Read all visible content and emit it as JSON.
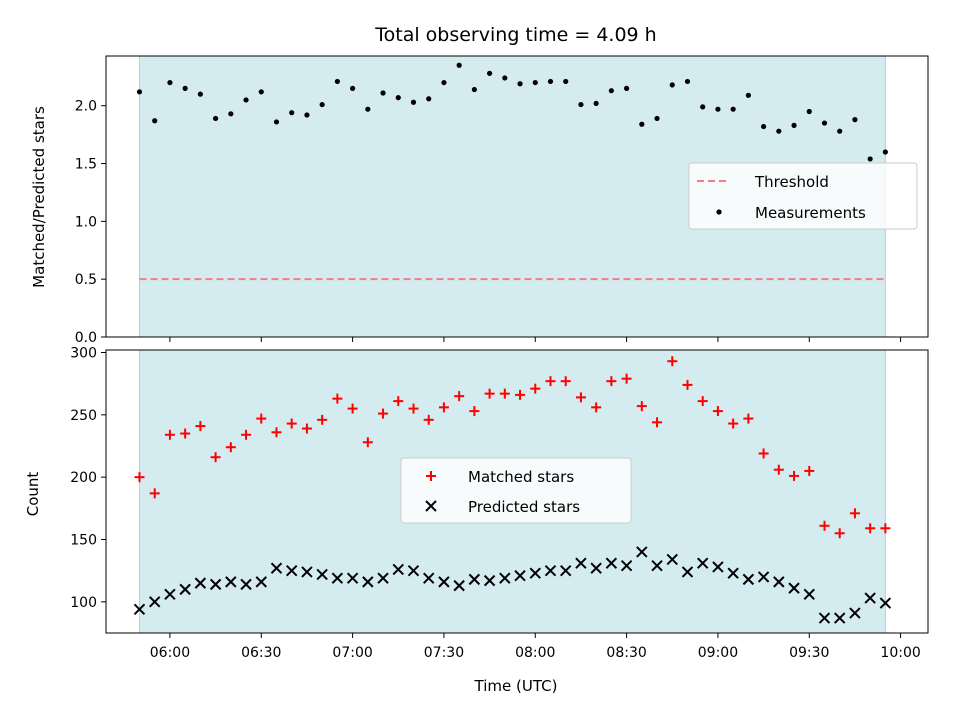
{
  "figure_title": "Total observing time = 4.09 h",
  "colors": {
    "shade": "#d4ebf0",
    "shade_edge": "#a8d7e0",
    "threshold": "#f08080",
    "measurements": "#000000",
    "matched": "#ff0000",
    "predicted": "#000000"
  },
  "chart_data": [
    {
      "type": "scatter",
      "panel": "top",
      "title": "",
      "xlabel": "",
      "ylabel": "Matched/Predicted stars",
      "x_tick_labels_visible": false,
      "ylim": [
        0.0,
        2.43
      ],
      "yticks": [
        "0.0",
        "0.5",
        "1.0",
        "1.5",
        "2.0"
      ],
      "legend": {
        "placement": "right",
        "entries": [
          "Threshold",
          "Measurements"
        ]
      },
      "threshold": {
        "name": "Threshold",
        "value": 0.5,
        "x_range": [
          "05:50",
          "09:55"
        ],
        "style": "dashed"
      },
      "series": [
        {
          "name": "Measurements",
          "marker": "dot",
          "x": [
            "05:50",
            "05:55",
            "06:00",
            "06:05",
            "06:10",
            "06:15",
            "06:20",
            "06:25",
            "06:30",
            "06:35",
            "06:40",
            "06:45",
            "06:50",
            "06:55",
            "07:00",
            "07:05",
            "07:10",
            "07:15",
            "07:20",
            "07:25",
            "07:30",
            "07:35",
            "07:40",
            "07:45",
            "07:50",
            "07:55",
            "08:00",
            "08:05",
            "08:10",
            "08:15",
            "08:20",
            "08:25",
            "08:30",
            "08:35",
            "08:40",
            "08:45",
            "08:50",
            "08:55",
            "09:00",
            "09:05",
            "09:10",
            "09:15",
            "09:20",
            "09:25",
            "09:30",
            "09:35",
            "09:40",
            "09:45",
            "09:50",
            "09:55"
          ],
          "y": [
            2.12,
            1.87,
            2.2,
            2.15,
            2.1,
            1.89,
            1.93,
            2.05,
            2.12,
            1.86,
            1.94,
            1.92,
            2.01,
            2.21,
            2.15,
            1.97,
            2.11,
            2.07,
            2.03,
            2.06,
            2.2,
            2.35,
            2.14,
            2.28,
            2.24,
            2.19,
            2.2,
            2.21,
            2.21,
            2.01,
            2.02,
            2.13,
            2.15,
            1.84,
            1.89,
            2.18,
            2.21,
            1.99,
            1.97,
            1.97,
            2.09,
            1.82,
            1.78,
            1.83,
            1.95,
            1.85,
            1.78,
            1.88,
            1.54,
            1.6
          ]
        }
      ]
    },
    {
      "type": "scatter",
      "panel": "bottom",
      "title": "",
      "xlabel": "Time (UTC)",
      "ylabel": "Count",
      "ylim": [
        75,
        302
      ],
      "yticks": [
        "100",
        "150",
        "200",
        "250",
        "300"
      ],
      "xlim": [
        "05:39",
        "10:09"
      ],
      "xticks": [
        "06:00",
        "06:30",
        "07:00",
        "07:30",
        "08:00",
        "08:30",
        "09:00",
        "09:30",
        "10:00"
      ],
      "legend": {
        "placement": "center",
        "entries": [
          "Matched stars",
          "Predicted stars"
        ]
      },
      "series": [
        {
          "name": "Matched stars",
          "marker": "plus",
          "x": [
            "05:50",
            "05:55",
            "06:00",
            "06:05",
            "06:10",
            "06:15",
            "06:20",
            "06:25",
            "06:30",
            "06:35",
            "06:40",
            "06:45",
            "06:50",
            "06:55",
            "07:00",
            "07:05",
            "07:10",
            "07:15",
            "07:20",
            "07:25",
            "07:30",
            "07:35",
            "07:40",
            "07:45",
            "07:50",
            "07:55",
            "08:00",
            "08:05",
            "08:10",
            "08:15",
            "08:20",
            "08:25",
            "08:30",
            "08:35",
            "08:40",
            "08:45",
            "08:50",
            "08:55",
            "09:00",
            "09:05",
            "09:10",
            "09:15",
            "09:20",
            "09:25",
            "09:30",
            "09:35",
            "09:40",
            "09:45",
            "09:50",
            "09:55"
          ],
          "y": [
            200,
            187,
            234,
            235,
            241,
            216,
            224,
            234,
            247,
            236,
            243,
            239,
            246,
            263,
            255,
            228,
            251,
            261,
            255,
            246,
            256,
            265,
            253,
            267,
            267,
            266,
            271,
            277,
            277,
            264,
            256,
            277,
            279,
            257,
            244,
            293,
            274,
            261,
            253,
            243,
            247,
            219,
            206,
            201,
            205,
            161,
            155,
            171,
            159,
            159
          ]
        },
        {
          "name": "Predicted stars",
          "marker": "x",
          "x": [
            "05:50",
            "05:55",
            "06:00",
            "06:05",
            "06:10",
            "06:15",
            "06:20",
            "06:25",
            "06:30",
            "06:35",
            "06:40",
            "06:45",
            "06:50",
            "06:55",
            "07:00",
            "07:05",
            "07:10",
            "07:15",
            "07:20",
            "07:25",
            "07:30",
            "07:35",
            "07:40",
            "07:45",
            "07:50",
            "07:55",
            "08:00",
            "08:05",
            "08:10",
            "08:15",
            "08:20",
            "08:25",
            "08:30",
            "08:35",
            "08:40",
            "08:45",
            "08:50",
            "08:55",
            "09:00",
            "09:05",
            "09:10",
            "09:15",
            "09:20",
            "09:25",
            "09:30",
            "09:35",
            "09:40",
            "09:45",
            "09:50",
            "09:55"
          ],
          "y": [
            94,
            100,
            106,
            110,
            115,
            114,
            116,
            114,
            116,
            127,
            125,
            124,
            122,
            119,
            119,
            116,
            119,
            126,
            125,
            119,
            116,
            113,
            118,
            117,
            119,
            121,
            123,
            125,
            125,
            131,
            127,
            131,
            129,
            140,
            129,
            134,
            124,
            131,
            128,
            123,
            118,
            120,
            116,
            111,
            106,
            87,
            87,
            91,
            103,
            99
          ]
        }
      ]
    }
  ]
}
